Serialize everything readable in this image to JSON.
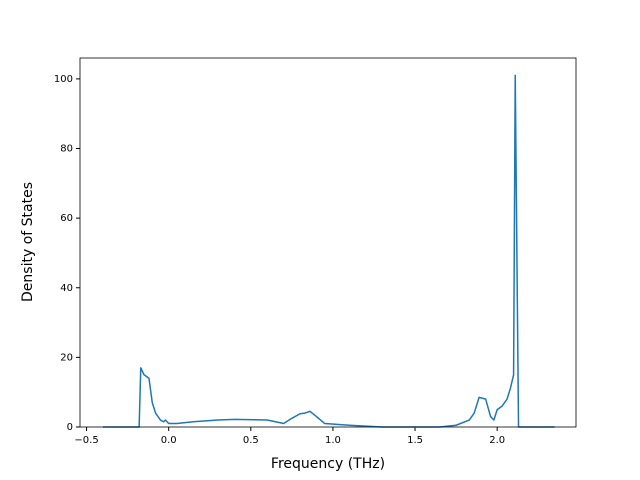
{
  "chart_data": {
    "type": "line",
    "x_label": "Frequency (THz)",
    "y_label": "Density of States",
    "x": [
      -0.4,
      -0.18,
      -0.17,
      -0.15,
      -0.12,
      -0.1,
      -0.08,
      -0.05,
      -0.03,
      -0.02,
      0,
      0.05,
      0.15,
      0.3,
      0.4,
      0.6,
      0.7,
      0.75,
      0.8,
      0.83,
      0.86,
      0.9,
      0.95,
      1.1,
      1.3,
      1.65,
      1.75,
      1.83,
      1.86,
      1.89,
      1.93,
      1.96,
      1.98,
      2.0,
      2.03,
      2.06,
      2.08,
      2.1,
      2.11,
      2.13,
      2.35
    ],
    "series": [
      {
        "color": "#1f77b4",
        "values": [
          0,
          0,
          17,
          15,
          14,
          7,
          4,
          2,
          1.5,
          2,
          1,
          1,
          1.5,
          2,
          2.2,
          2,
          1,
          2.5,
          3.8,
          4,
          4.5,
          3,
          1,
          0.5,
          0,
          0,
          0.5,
          2,
          4,
          8.5,
          8,
          3,
          2,
          5,
          6,
          8,
          11,
          15,
          101,
          0,
          0
        ]
      }
    ],
    "xlim": [
      -0.54,
      2.48
    ],
    "ylim": [
      0,
      106
    ],
    "xticks": [
      {
        "value": -0.5,
        "label": "−0.5"
      },
      {
        "value": 0,
        "label": "0.0"
      },
      0.5,
      {
        "value": 1,
        "label": "1.0"
      },
      1.5,
      {
        "value": 2,
        "label": "2.0"
      }
    ],
    "yticks": [
      0,
      20,
      40,
      60,
      80,
      100
    ]
  }
}
